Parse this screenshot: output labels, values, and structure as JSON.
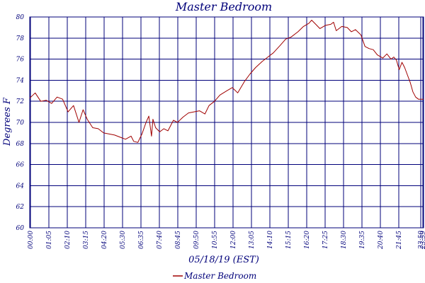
{
  "chart_data": {
    "type": "line",
    "title": "Master Bedroom",
    "xlabel": "05/18/19 (EST)",
    "ylabel": "Degrees F",
    "ylim": [
      60,
      80
    ],
    "yticks": [
      "60",
      "62",
      "64",
      "66",
      "68",
      "70",
      "72",
      "74",
      "76",
      "78",
      "80"
    ],
    "xticks": [
      "00:00",
      "01:05",
      "02:10",
      "03:15",
      "04:20",
      "05:30",
      "06:35",
      "07:40",
      "08:45",
      "09:50",
      "10:55",
      "12:00",
      "13:05",
      "14:10",
      "15:15",
      "16:20",
      "17:25",
      "18:30",
      "19:35",
      "20:40",
      "21:45",
      "23:50",
      "23:59"
    ],
    "grid": true,
    "legend_position": "bottom-center",
    "series": [
      {
        "name": "Master Bedroom",
        "color": "#a00000",
        "x": [
          "00:00",
          "00:20",
          "00:40",
          "01:00",
          "01:20",
          "01:40",
          "02:00",
          "02:20",
          "02:40",
          "03:00",
          "03:15",
          "03:30",
          "03:50",
          "04:10",
          "04:30",
          "04:50",
          "05:10",
          "05:30",
          "05:50",
          "06:10",
          "06:20",
          "06:35",
          "06:50",
          "07:05",
          "07:15",
          "07:25",
          "07:30",
          "07:40",
          "07:55",
          "08:10",
          "08:25",
          "08:45",
          "09:00",
          "09:20",
          "09:40",
          "10:00",
          "10:20",
          "10:40",
          "10:55",
          "11:15",
          "11:35",
          "12:00",
          "12:20",
          "12:40",
          "13:05",
          "13:25",
          "13:45",
          "14:10",
          "14:30",
          "14:50",
          "15:15",
          "15:35",
          "15:55",
          "16:20",
          "16:40",
          "17:00",
          "17:10",
          "17:25",
          "17:40",
          "18:00",
          "18:20",
          "18:30",
          "18:40",
          "19:00",
          "19:20",
          "19:35",
          "19:50",
          "20:10",
          "20:25",
          "20:40",
          "20:55",
          "21:10",
          "21:30",
          "21:45",
          "22:00",
          "22:10",
          "22:20",
          "22:30",
          "22:40",
          "22:50",
          "23:00",
          "23:10",
          "23:20",
          "23:30",
          "23:40",
          "23:59"
        ],
        "values": [
          72.3,
          72.8,
          72.0,
          72.1,
          71.8,
          72.4,
          72.2,
          71.0,
          71.6,
          70.0,
          71.2,
          70.3,
          69.5,
          69.4,
          69.0,
          68.9,
          68.8,
          68.6,
          68.4,
          68.7,
          68.2,
          68.1,
          68.9,
          70.0,
          70.6,
          68.7,
          70.3,
          69.5,
          69.1,
          69.4,
          69.2,
          70.2,
          70.0,
          70.5,
          70.9,
          71.0,
          71.1,
          70.8,
          71.6,
          72.0,
          72.6,
          73.0,
          73.3,
          72.8,
          73.9,
          74.6,
          75.2,
          75.8,
          76.2,
          76.6,
          77.3,
          77.9,
          78.1,
          78.6,
          79.1,
          79.4,
          79.7,
          79.3,
          78.9,
          79.2,
          79.3,
          79.5,
          78.7,
          79.1,
          79.0,
          78.6,
          78.8,
          78.3,
          77.2,
          77.0,
          76.9,
          76.4,
          76.1,
          76.5,
          76.0,
          76.2,
          75.9,
          75.0,
          75.7,
          75.2,
          74.5,
          73.8,
          72.9,
          72.4,
          72.2,
          72.2
        ]
      }
    ]
  }
}
